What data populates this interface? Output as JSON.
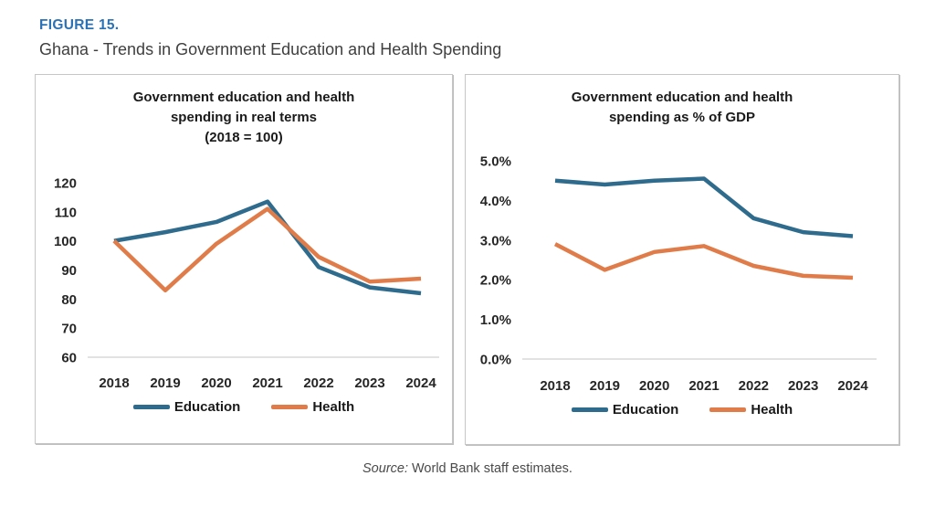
{
  "header": {
    "figure_label": "FIGURE 15.",
    "title": "Ghana - Trends in Government Education and Health Spending"
  },
  "footer": {
    "source_label": "Source:",
    "source_text": "World Bank staff estimates."
  },
  "colors": {
    "figure_label_blue": "#2A72B5",
    "subtitle_gray": "#3F3F3F",
    "education_line": "#2E6B8C",
    "health_line": "#E07C49",
    "axis_baseline": "#D9D9D9",
    "chart_text": "#262626",
    "panel_border": "#C6C6C6"
  },
  "chart_data": [
    {
      "type": "line",
      "title": "Government education and health\nspending in real terms\n(2018 = 100)",
      "categories": [
        "2018",
        "2019",
        "2020",
        "2021",
        "2022",
        "2023",
        "2024"
      ],
      "series": [
        {
          "name": "Education",
          "color": "#2E6B8C",
          "values": [
            100,
            103,
            106.5,
            113.5,
            91,
            84,
            82
          ]
        },
        {
          "name": "Health",
          "color": "#E07C49",
          "values": [
            100,
            83,
            99,
            111,
            94.5,
            86,
            87
          ]
        }
      ],
      "xlabel": "",
      "ylabel": "",
      "ylim": [
        60,
        120
      ],
      "yticks": [
        {
          "v": 60,
          "label": "60"
        },
        {
          "v": 70,
          "label": "70"
        },
        {
          "v": 80,
          "label": "80"
        },
        {
          "v": 90,
          "label": "90"
        },
        {
          "v": 100,
          "label": "100"
        },
        {
          "v": 110,
          "label": "110"
        },
        {
          "v": 120,
          "label": "120"
        }
      ],
      "grid": false,
      "legend_position": "bottom"
    },
    {
      "type": "line",
      "title": "Government education and health\nspending as % of GDP",
      "categories": [
        "2018",
        "2019",
        "2020",
        "2021",
        "2022",
        "2023",
        "2024"
      ],
      "series": [
        {
          "name": "Education",
          "color": "#2E6B8C",
          "values": [
            4.5,
            4.4,
            4.5,
            4.55,
            3.55,
            3.2,
            3.1
          ]
        },
        {
          "name": "Health",
          "color": "#E07C49",
          "values": [
            2.9,
            2.25,
            2.7,
            2.85,
            2.35,
            2.1,
            2.05
          ]
        }
      ],
      "xlabel": "",
      "ylabel": "",
      "ylim": [
        0,
        5
      ],
      "yticks": [
        {
          "v": 0,
          "label": "0.0%"
        },
        {
          "v": 1,
          "label": "1.0%"
        },
        {
          "v": 2,
          "label": "2.0%"
        },
        {
          "v": 3,
          "label": "3.0%"
        },
        {
          "v": 4,
          "label": "4.0%"
        },
        {
          "v": 5,
          "label": "5.0%"
        }
      ],
      "grid": false,
      "legend_position": "bottom"
    }
  ]
}
